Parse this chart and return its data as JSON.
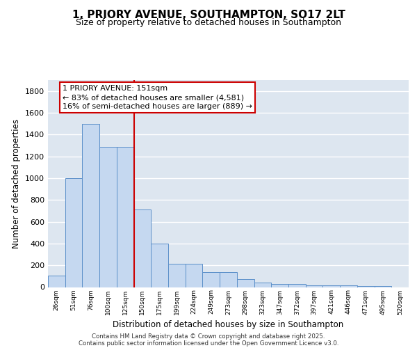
{
  "title": "1, PRIORY AVENUE, SOUTHAMPTON, SO17 2LT",
  "subtitle": "Size of property relative to detached houses in Southampton",
  "xlabel": "Distribution of detached houses by size in Southampton",
  "ylabel": "Number of detached properties",
  "categories": [
    "26sqm",
    "51sqm",
    "76sqm",
    "100sqm",
    "125sqm",
    "150sqm",
    "175sqm",
    "199sqm",
    "224sqm",
    "249sqm",
    "273sqm",
    "298sqm",
    "323sqm",
    "347sqm",
    "372sqm",
    "397sqm",
    "421sqm",
    "446sqm",
    "471sqm",
    "495sqm",
    "520sqm"
  ],
  "values": [
    105,
    1000,
    1500,
    1290,
    1290,
    710,
    400,
    215,
    215,
    135,
    135,
    75,
    40,
    30,
    30,
    15,
    15,
    15,
    10,
    10,
    0
  ],
  "bar_color": "#c5d8f0",
  "bar_edge_color": "#5b8fc9",
  "vline_position": 4.5,
  "vline_color": "#cc0000",
  "annotation_text": "1 PRIORY AVENUE: 151sqm\n← 83% of detached houses are smaller (4,581)\n16% of semi-detached houses are larger (889) →",
  "annotation_box_color": "#ffffff",
  "annotation_box_edge": "#cc0000",
  "background_color": "#dde6f0",
  "footer_line1": "Contains HM Land Registry data © Crown copyright and database right 2025.",
  "footer_line2": "Contains public sector information licensed under the Open Government Licence v3.0.",
  "ylim": [
    0,
    1900
  ],
  "yticks": [
    0,
    200,
    400,
    600,
    800,
    1000,
    1200,
    1400,
    1600,
    1800
  ]
}
